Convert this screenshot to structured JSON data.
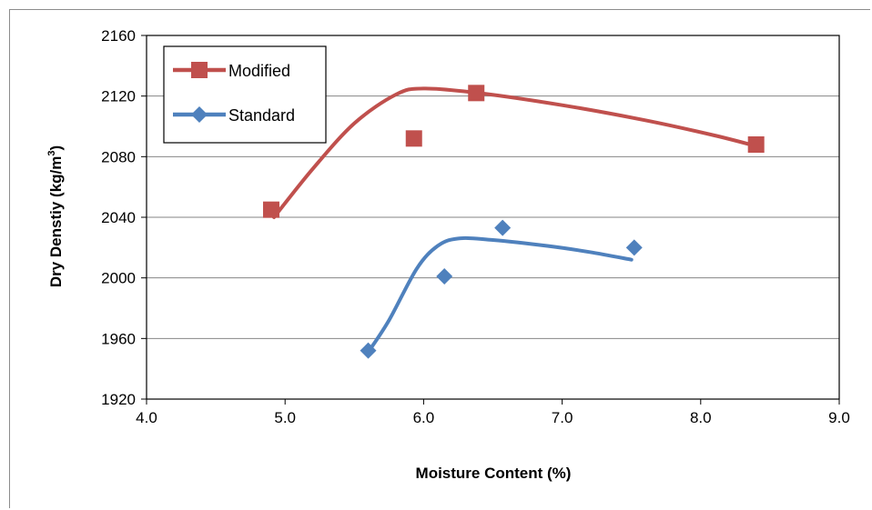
{
  "chart_data": {
    "type": "scatter",
    "xlabel": "Moisture Content (%)",
    "ylabel_main": "Dry Denstiy (kg/m",
    "ylabel_sup": "3",
    "ylabel_close": ")",
    "xlim": [
      4.0,
      9.0
    ],
    "ylim": [
      1920,
      2160
    ],
    "xticks": [
      4.0,
      5.0,
      6.0,
      7.0,
      8.0,
      9.0
    ],
    "xtick_labels": [
      "4.0",
      "5.0",
      "6.0",
      "7.0",
      "8.0",
      "9.0"
    ],
    "yticks": [
      1920,
      1960,
      2000,
      2040,
      2080,
      2120,
      2160
    ],
    "ytick_labels": [
      "1920",
      "1960",
      "2000",
      "2040",
      "2080",
      "2120",
      "2160"
    ],
    "grid": "horizontal",
    "legend_position": "top-left",
    "series": [
      {
        "name": "Modified",
        "color": "#c0504d",
        "marker": "square",
        "points": [
          [
            4.9,
            2045
          ],
          [
            5.93,
            2092
          ],
          [
            6.38,
            2122
          ],
          [
            8.4,
            2088
          ]
        ],
        "curve": [
          [
            4.92,
            2040
          ],
          [
            5.2,
            2072
          ],
          [
            5.5,
            2102
          ],
          [
            5.8,
            2121
          ],
          [
            6.0,
            2125
          ],
          [
            6.4,
            2122
          ],
          [
            7.0,
            2114
          ],
          [
            7.6,
            2104
          ],
          [
            8.1,
            2094
          ],
          [
            8.4,
            2087
          ]
        ]
      },
      {
        "name": "Standard",
        "color": "#4f81bd",
        "marker": "diamond",
        "points": [
          [
            5.6,
            1952
          ],
          [
            6.15,
            2001
          ],
          [
            6.57,
            2033
          ],
          [
            7.52,
            2020
          ]
        ],
        "curve": [
          [
            5.6,
            1951
          ],
          [
            5.75,
            1972
          ],
          [
            5.95,
            2006
          ],
          [
            6.1,
            2021
          ],
          [
            6.25,
            2026
          ],
          [
            6.5,
            2025
          ],
          [
            6.9,
            2021
          ],
          [
            7.2,
            2017
          ],
          [
            7.5,
            2012
          ]
        ]
      }
    ]
  }
}
